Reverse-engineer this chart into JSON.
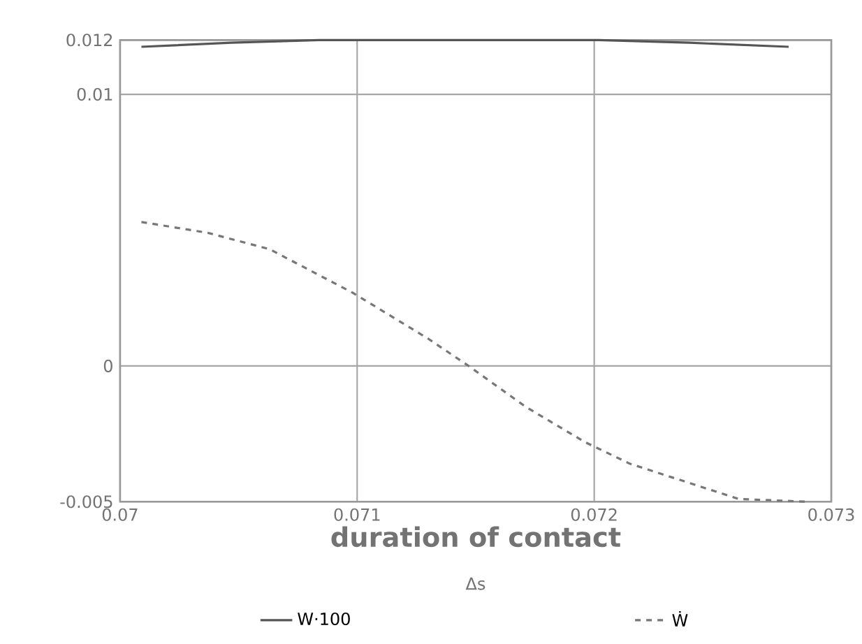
{
  "chart_data": {
    "type": "line",
    "xlabel": "duration of contact",
    "annotations": [
      "Δs"
    ],
    "xlim": [
      0.07,
      0.073
    ],
    "ylim": [
      -0.005,
      0.012
    ],
    "xticks": [
      0.07,
      0.071,
      0.072,
      0.073
    ],
    "yticks": [
      -0.005,
      0,
      0.01,
      0.012
    ],
    "grid": true,
    "legend": "bottom",
    "marker": "none",
    "series": [
      {
        "name": "W·100",
        "color": "#555555",
        "line_style": "solid",
        "x": [
          0.07009,
          0.07047,
          0.07084,
          0.07149,
          0.07202,
          0.0724,
          0.07282
        ],
        "values": [
          0.01175,
          0.0119,
          0.012,
          0.012,
          0.012,
          0.0119,
          0.01175
        ]
      },
      {
        "name": "Ẇ",
        "color": "#777777",
        "line_style": "dashed",
        "x": [
          0.07009,
          0.07037,
          0.07063,
          0.07098,
          0.0713,
          0.07147,
          0.07171,
          0.07196,
          0.07215,
          0.07261,
          0.0729
        ],
        "values": [
          0.0053,
          0.0049,
          0.0043,
          0.0027,
          0.001,
          0,
          -0.0015,
          -0.0028,
          -0.0036,
          -0.0049,
          -0.005
        ]
      }
    ]
  }
}
